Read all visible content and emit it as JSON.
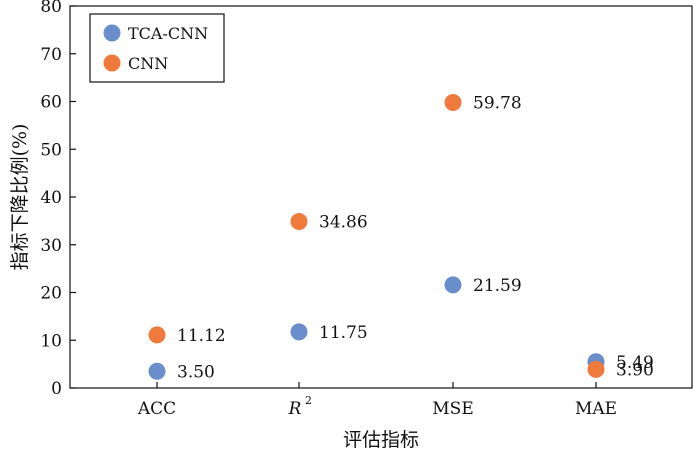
{
  "chart_data": {
    "type": "scatter",
    "categories": [
      "ACC",
      "R",
      "MSE",
      "MAE"
    ],
    "category_superscripts": [
      "",
      "2",
      "",
      ""
    ],
    "series": [
      {
        "name": "TCA-CNN",
        "color": "#6a8ecb",
        "values": [
          3.5,
          11.75,
          21.59,
          5.49
        ],
        "labels": [
          "3.50",
          "11.75",
          "21.59",
          "5.49"
        ]
      },
      {
        "name": "CNN",
        "color": "#ef7a3c",
        "values": [
          11.12,
          34.86,
          59.78,
          3.9
        ],
        "labels": [
          "11.12",
          "34.86",
          "59.78",
          "3.90"
        ]
      }
    ],
    "xlabel": "评估指标",
    "ylabel": "指标下降比例(%)",
    "ylim": [
      0,
      80
    ],
    "yticks": [
      0,
      10,
      20,
      30,
      40,
      50,
      60,
      70,
      80
    ],
    "grid": false,
    "legend_position": "top-left"
  }
}
